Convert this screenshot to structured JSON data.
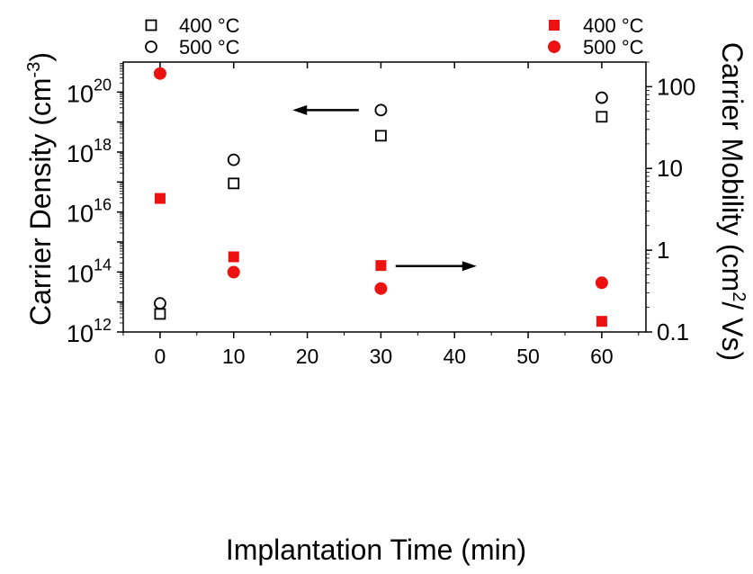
{
  "chart_data": {
    "type": "scatter",
    "title": "",
    "xlabel": "Implantation Time (min)",
    "ylabel_left": {
      "text": "Carrier Density (cm",
      "sup": "-3",
      "tail": ")"
    },
    "ylabel_right": {
      "text": "Carrier Mobility (cm",
      "sup": "2",
      "tail": "/ Vs)"
    },
    "x_ticks": [
      "0",
      "10",
      "20",
      "30",
      "40",
      "50",
      "60"
    ],
    "xlim": [
      -5,
      66
    ],
    "ylim_left": [
      1000000000000.0,
      1e+21
    ],
    "ylim_right": [
      0.1,
      200
    ],
    "left_scale": "log",
    "right_scale": "log",
    "left_ticks": [
      {
        "value": 1000000000000.0,
        "base": "10",
        "exp": "12"
      },
      {
        "value": 100000000000000.0,
        "base": "10",
        "exp": "14"
      },
      {
        "value": 1e+16,
        "base": "10",
        "exp": "16"
      },
      {
        "value": 1e+18,
        "base": "10",
        "exp": "18"
      },
      {
        "value": 1e+20,
        "base": "10",
        "exp": "20"
      }
    ],
    "right_ticks": [
      {
        "value": 0.1,
        "label": "0.1"
      },
      {
        "value": 1,
        "label": "1"
      },
      {
        "value": 10,
        "label": "10"
      },
      {
        "value": 100,
        "label": "100"
      }
    ],
    "legend_left": [
      {
        "marker": "square-open",
        "label": "400 °C"
      },
      {
        "marker": "circle-open",
        "label": "500 °C"
      }
    ],
    "legend_right": [
      {
        "marker": "square-filled",
        "label": "400 °C"
      },
      {
        "marker": "circle-filled",
        "label": "500 °C"
      }
    ],
    "series": [
      {
        "name": "400 °C",
        "axis": "left",
        "marker": "square-open",
        "color": "#000000",
        "x": [
          0,
          10,
          30,
          60
        ],
        "y": [
          4000000000000.0,
          9e+16,
          3.5e+18,
          1.5e+19
        ]
      },
      {
        "name": "500 °C",
        "axis": "left",
        "marker": "circle-open",
        "color": "#000000",
        "x": [
          0,
          10,
          30,
          60
        ],
        "y": [
          9000000000000.0,
          5.5e+17,
          2.5e+19,
          6.5e+19
        ]
      },
      {
        "name": "400 °C",
        "axis": "right",
        "marker": "square-filled",
        "color": "#ee1111",
        "x": [
          0,
          10,
          30,
          60
        ],
        "y": [
          4.3,
          0.83,
          0.65,
          0.135
        ]
      },
      {
        "name": "500 °C",
        "axis": "right",
        "marker": "circle-filled",
        "color": "#ee1111",
        "x": [
          0,
          10,
          30,
          60
        ],
        "y": [
          145,
          0.54,
          0.34,
          0.4
        ]
      }
    ],
    "arrows": [
      {
        "points_to": "left",
        "x_from": 27,
        "x_to": 18,
        "axis": "left",
        "y": 2.5e+19
      },
      {
        "points_to": "right",
        "x_from": 32,
        "x_to": 43,
        "axis": "right",
        "y": 0.64
      }
    ]
  }
}
